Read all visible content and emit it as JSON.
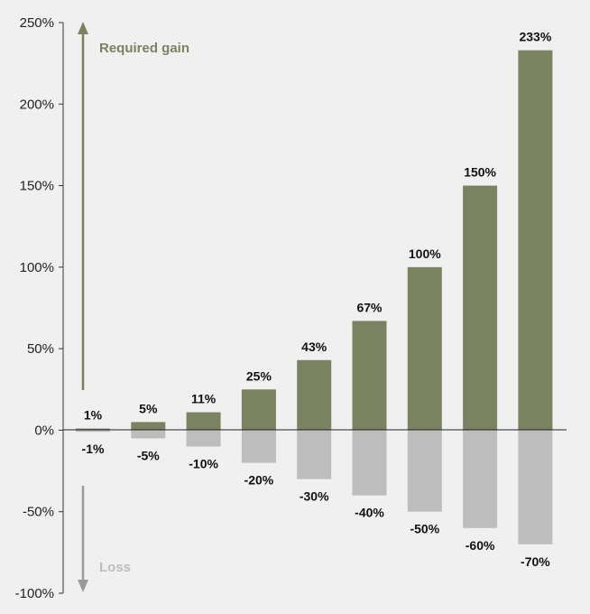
{
  "colors": {
    "gain": "#7b8261",
    "loss": "#bdbdbd",
    "gain_arrow": "#7b8261",
    "loss_arrow": "#9a9a9a",
    "background": "#f0f0f0"
  },
  "annotations": {
    "gain": "Required gain",
    "loss": "Loss"
  },
  "chart_data": {
    "type": "bar",
    "grid": false,
    "ylim": [
      -100,
      250
    ],
    "yticks": [
      250,
      200,
      150,
      100,
      50,
      0,
      -50,
      -100
    ],
    "ytick_labels": [
      "250%",
      "200%",
      "150%",
      "100%",
      "50%",
      "0%",
      "-50%",
      "-100%"
    ],
    "series": [
      {
        "values": [
          1,
          5,
          11,
          25,
          43,
          67,
          100,
          150,
          233
        ],
        "labels": [
          "1%",
          "5%",
          "11%",
          "25%",
          "43%",
          "67%",
          "100%",
          "150%",
          "233%"
        ]
      },
      {
        "values": [
          -1,
          -5,
          -10,
          -20,
          -30,
          -40,
          -50,
          -60,
          -70
        ],
        "labels": [
          "-1%",
          "-5%",
          "-10%",
          "-20%",
          "-30%",
          "-40%",
          "-50%",
          "-60%",
          "-70%"
        ]
      }
    ]
  }
}
